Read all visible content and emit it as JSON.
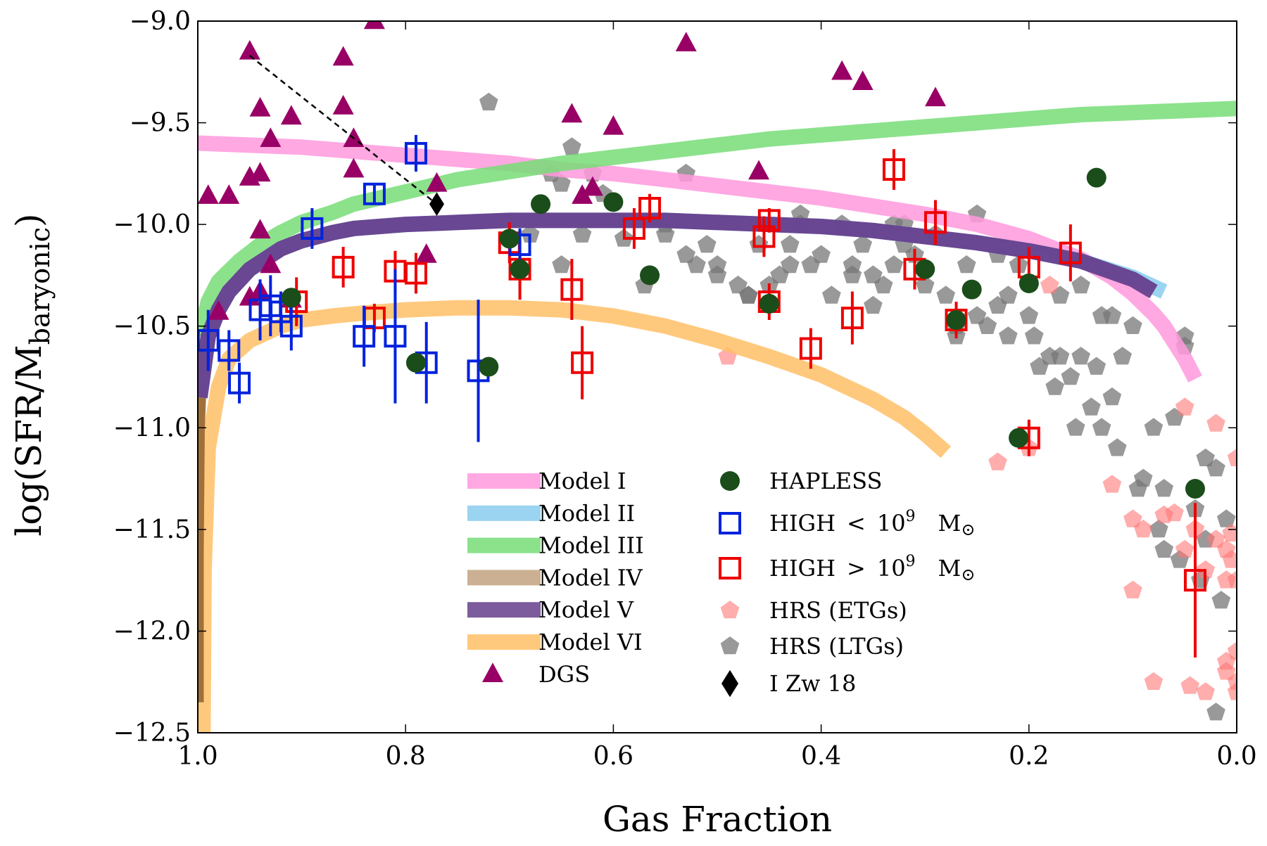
{
  "chart_data": {
    "type": "scatter",
    "title": "",
    "xlabel": "Gas Fraction",
    "ylabel": "log(SFR/M",
    "ylabel_sub": "baryonic",
    "ylabel_close": ")",
    "xlim": [
      1.0,
      0.0
    ],
    "ylim": [
      -12.5,
      -9.0
    ],
    "x_ticks": [
      1.0,
      0.8,
      0.6,
      0.4,
      0.2,
      0.0
    ],
    "x_tick_labels": [
      "1.0",
      "0.8",
      "0.6",
      "0.4",
      "0.2",
      "0.0"
    ],
    "y_ticks": [
      -9.0,
      -9.5,
      -10.0,
      -10.5,
      -11.0,
      -11.5,
      -12.0,
      -12.5
    ],
    "y_tick_labels": [
      "−9.0",
      "−9.5",
      "−10.0",
      "−10.5",
      "−11.0",
      "−11.5",
      "−12.0",
      "−12.5"
    ],
    "grid": false,
    "legend_position": "lower-center",
    "series": [
      {
        "name": "Model I",
        "kind": "line",
        "color": "#ff99dd",
        "x": [
          1.0,
          0.95,
          0.9,
          0.85,
          0.8,
          0.75,
          0.7,
          0.65,
          0.6,
          0.55,
          0.5,
          0.45,
          0.4,
          0.35,
          0.3,
          0.25,
          0.2,
          0.15,
          0.12,
          0.1,
          0.08,
          0.07,
          0.06,
          0.05,
          0.04
        ],
        "y": [
          -9.6,
          -9.61,
          -9.62,
          -9.64,
          -9.66,
          -9.68,
          -9.7,
          -9.73,
          -9.75,
          -9.78,
          -9.81,
          -9.84,
          -9.87,
          -9.91,
          -9.95,
          -10.0,
          -10.07,
          -10.17,
          -10.26,
          -10.34,
          -10.44,
          -10.5,
          -10.58,
          -10.66,
          -10.76
        ]
      },
      {
        "name": "Model II",
        "kind": "line",
        "color": "#88ccee",
        "x": [
          0.998,
          0.99,
          0.98,
          0.97,
          0.95,
          0.92,
          0.9,
          0.87,
          0.85,
          0.8,
          0.75,
          0.7,
          0.65,
          0.6,
          0.55,
          0.5,
          0.45,
          0.4,
          0.35,
          0.3,
          0.25,
          0.2,
          0.15,
          0.1,
          0.07
        ],
        "y": [
          -10.85,
          -10.55,
          -10.42,
          -10.33,
          -10.22,
          -10.12,
          -10.08,
          -10.04,
          -10.02,
          -10.0,
          -9.99,
          -9.98,
          -9.98,
          -9.98,
          -9.98,
          -9.99,
          -10.0,
          -10.01,
          -10.03,
          -10.06,
          -10.09,
          -10.13,
          -10.18,
          -10.26,
          -10.33
        ]
      },
      {
        "name": "Model III",
        "kind": "line",
        "color": "#77dd77",
        "x": [
          0.998,
          0.99,
          0.98,
          0.96,
          0.94,
          0.92,
          0.9,
          0.87,
          0.85,
          0.8,
          0.75,
          0.7,
          0.65,
          0.6,
          0.55,
          0.5,
          0.45,
          0.4,
          0.35,
          0.3,
          0.25,
          0.2,
          0.15,
          0.1,
          0.05,
          0.0
        ],
        "y": [
          -10.55,
          -10.38,
          -10.28,
          -10.18,
          -10.1,
          -10.04,
          -9.99,
          -9.94,
          -9.9,
          -9.84,
          -9.78,
          -9.74,
          -9.7,
          -9.67,
          -9.64,
          -9.61,
          -9.58,
          -9.56,
          -9.54,
          -9.52,
          -9.5,
          -9.48,
          -9.46,
          -9.45,
          -9.44,
          -9.43
        ]
      },
      {
        "name": "Model IV",
        "kind": "line",
        "color": "#a0703a",
        "x": [
          0.999,
          0.999,
          0.998,
          0.996,
          0.993
        ],
        "y": [
          -12.35,
          -11.6,
          -11.0,
          -10.75,
          -10.6
        ]
      },
      {
        "name": "Model V",
        "kind": "line",
        "color": "#663f8c",
        "x": [
          0.998,
          0.99,
          0.98,
          0.97,
          0.95,
          0.92,
          0.9,
          0.87,
          0.85,
          0.8,
          0.75,
          0.7,
          0.65,
          0.6,
          0.55,
          0.5,
          0.45,
          0.4,
          0.35,
          0.3,
          0.25,
          0.2,
          0.15,
          0.1,
          0.08
        ],
        "y": [
          -10.85,
          -10.55,
          -10.42,
          -10.33,
          -10.22,
          -10.12,
          -10.08,
          -10.04,
          -10.02,
          -10.0,
          -9.99,
          -9.98,
          -9.98,
          -9.98,
          -9.98,
          -9.99,
          -10.0,
          -10.01,
          -10.03,
          -10.06,
          -10.09,
          -10.13,
          -10.18,
          -10.27,
          -10.33
        ]
      },
      {
        "name": "Model VI",
        "kind": "line",
        "color": "#ffc066",
        "x": [
          0.995,
          0.994,
          0.99,
          0.98,
          0.97,
          0.95,
          0.92,
          0.9,
          0.87,
          0.85,
          0.8,
          0.75,
          0.7,
          0.65,
          0.6,
          0.55,
          0.5,
          0.45,
          0.4,
          0.35,
          0.32,
          0.3,
          0.28
        ],
        "y": [
          -12.5,
          -11.7,
          -11.1,
          -10.8,
          -10.66,
          -10.57,
          -10.5,
          -10.47,
          -10.45,
          -10.44,
          -10.42,
          -10.41,
          -10.41,
          -10.42,
          -10.45,
          -10.5,
          -10.57,
          -10.65,
          -10.74,
          -10.86,
          -10.95,
          -11.03,
          -11.12
        ]
      },
      {
        "name": "DGS",
        "kind": "marker",
        "marker": "triangle",
        "color": "#990066",
        "x": [
          0.99,
          0.97,
          0.95,
          0.94,
          0.94,
          0.93,
          0.91,
          0.95,
          0.94,
          0.93,
          0.91,
          0.86,
          0.86,
          0.85,
          0.85,
          0.83,
          0.78,
          0.77,
          0.64,
          0.63,
          0.62,
          0.6,
          0.53,
          0.46,
          0.38,
          0.36,
          0.29,
          0.94,
          0.95,
          0.98
        ],
        "y": [
          -9.86,
          -9.86,
          -9.15,
          -9.43,
          -10.03,
          -10.2,
          -9.47,
          -9.77,
          -9.75,
          -9.58,
          -10.37,
          -9.42,
          -9.18,
          -9.58,
          -9.73,
          -9.0,
          -10.15,
          -9.8,
          -9.46,
          -9.86,
          -9.82,
          -9.52,
          -9.11,
          -9.74,
          -9.25,
          -9.3,
          -9.38,
          -10.33,
          -10.36,
          -10.43
        ]
      },
      {
        "name": "HAPLESS",
        "kind": "marker",
        "marker": "circle",
        "color": "#1a4d1a",
        "x": [
          0.91,
          0.6,
          0.565,
          0.255,
          0.2,
          0.135,
          0.04,
          0.45,
          0.3,
          0.27,
          0.21,
          0.69,
          0.7,
          0.79,
          0.67,
          0.72
        ],
        "y": [
          -10.36,
          -9.89,
          -10.25,
          -10.32,
          -10.29,
          -9.77,
          -11.3,
          -10.39,
          -10.22,
          -10.47,
          -11.05,
          -10.22,
          -10.07,
          -10.68,
          -9.9,
          -10.7
        ]
      },
      {
        "name": "HIGH < 10^9 M⊙",
        "kind": "marker",
        "marker": "square",
        "color": "#0022dd",
        "x": [
          0.99,
          0.97,
          0.96,
          0.94,
          0.93,
          0.92,
          0.91,
          0.89,
          0.84,
          0.83,
          0.81,
          0.79,
          0.78,
          0.73,
          0.69
        ],
        "y": [
          -10.57,
          -10.62,
          -10.78,
          -10.42,
          -10.4,
          -10.43,
          -10.5,
          -10.02,
          -10.55,
          -9.85,
          -10.55,
          -9.65,
          -10.68,
          -10.72,
          -10.1
        ],
        "yerr": [
          0.15,
          0.1,
          0.1,
          0.15,
          0.15,
          0.1,
          0.12,
          0.1,
          0.15,
          0.05,
          0.33,
          0.09,
          0.2,
          0.35,
          0.08
        ]
      },
      {
        "name": "HIGH > 10^9 M⊙",
        "kind": "marker",
        "marker": "square",
        "color": "#ee0000",
        "x": [
          0.905,
          0.86,
          0.83,
          0.81,
          0.79,
          0.7,
          0.69,
          0.64,
          0.63,
          0.58,
          0.565,
          0.455,
          0.45,
          0.45,
          0.41,
          0.37,
          0.33,
          0.31,
          0.29,
          0.27,
          0.2,
          0.2,
          0.16,
          0.04
        ],
        "y": [
          -10.38,
          -10.21,
          -10.46,
          -10.23,
          -10.24,
          -10.09,
          -10.22,
          -10.32,
          -10.68,
          -10.02,
          -9.92,
          -10.06,
          -10.38,
          -9.98,
          -10.61,
          -10.46,
          -9.73,
          -10.22,
          -9.99,
          -10.47,
          -11.05,
          -10.21,
          -10.14,
          -11.75
        ],
        "yerr": [
          0.12,
          0.1,
          0.07,
          0.1,
          0.1,
          0.1,
          0.15,
          0.15,
          0.18,
          0.1,
          0.07,
          0.1,
          0.09,
          0.06,
          0.1,
          0.13,
          0.1,
          0.1,
          0.11,
          0.09,
          0.09,
          0.1,
          0.14,
          0.38
        ]
      },
      {
        "name": "HRS (ETGs)",
        "kind": "marker",
        "marker": "pentagon",
        "color": "#ff7777",
        "x": [
          0.49,
          0.23,
          0.2,
          0.18,
          0.12,
          0.1,
          0.09,
          0.07,
          0.06,
          0.05,
          0.04,
          0.03,
          0.02,
          0.01,
          0.01,
          0.005,
          0.005,
          0.0,
          0.0,
          0.0,
          0.01,
          0.03,
          0.045,
          0.02,
          0.0,
          0.08,
          0.1,
          0.05,
          0.01,
          0.0
        ],
        "y": [
          -10.65,
          -11.17,
          -11.1,
          -10.3,
          -11.28,
          -11.45,
          -11.5,
          -11.43,
          -11.42,
          -11.6,
          -11.5,
          -11.7,
          -11.55,
          -11.6,
          -11.75,
          -11.52,
          -11.65,
          -11.75,
          -12.1,
          -12.25,
          -12.15,
          -12.3,
          -12.27,
          -10.98,
          -11.15,
          -12.25,
          -11.8,
          -10.9,
          -12.2,
          -12.3
        ]
      },
      {
        "name": "HRS (LTGs)",
        "kind": "marker",
        "marker": "pentagon",
        "color": "#777777",
        "x": [
          0.72,
          0.68,
          0.66,
          0.65,
          0.64,
          0.62,
          0.61,
          0.59,
          0.57,
          0.55,
          0.53,
          0.52,
          0.51,
          0.5,
          0.48,
          0.47,
          0.46,
          0.44,
          0.43,
          0.42,
          0.41,
          0.4,
          0.39,
          0.38,
          0.37,
          0.36,
          0.35,
          0.34,
          0.33,
          0.32,
          0.31,
          0.3,
          0.29,
          0.28,
          0.27,
          0.26,
          0.25,
          0.24,
          0.23,
          0.22,
          0.21,
          0.2,
          0.19,
          0.18,
          0.17,
          0.16,
          0.15,
          0.14,
          0.13,
          0.12,
          0.11,
          0.1,
          0.09,
          0.08,
          0.07,
          0.06,
          0.05,
          0.04,
          0.03,
          0.02,
          0.01,
          0.135,
          0.115,
          0.095,
          0.075,
          0.055,
          0.035,
          0.015,
          0.195,
          0.175,
          0.155,
          0.5,
          0.45,
          0.35,
          0.25,
          0.15,
          0.05,
          0.65,
          0.55,
          0.42,
          0.32,
          0.22,
          0.12,
          0.02,
          0.47,
          0.37,
          0.27,
          0.17,
          0.07,
          0.63,
          0.53,
          0.43,
          0.33,
          0.23,
          0.13,
          0.03
        ],
        "y": [
          -9.4,
          -10.05,
          -9.75,
          -9.8,
          -9.62,
          -9.75,
          -9.85,
          -10.07,
          -10.3,
          -10.05,
          -10.15,
          -10.2,
          -10.1,
          -10.25,
          -10.3,
          -10.35,
          -10.1,
          -10.25,
          -10.1,
          -9.95,
          -10.2,
          -10.15,
          -10.35,
          -10.0,
          -10.25,
          -10.1,
          -10.4,
          -10.3,
          -10.2,
          -10.0,
          -10.15,
          -10.3,
          -10.05,
          -10.35,
          -10.55,
          -10.2,
          -10.45,
          -10.5,
          -10.4,
          -10.55,
          -10.2,
          -10.45,
          -10.7,
          -10.65,
          -10.35,
          -10.75,
          -10.65,
          -10.9,
          -11.0,
          -10.45,
          -10.65,
          -10.5,
          -11.25,
          -11.0,
          -11.3,
          -10.95,
          -10.6,
          -11.4,
          -11.55,
          -11.2,
          -11.45,
          -10.7,
          -11.1,
          -11.3,
          -11.5,
          -11.65,
          -11.75,
          -11.85,
          -10.55,
          -10.8,
          -11.0,
          -10.2,
          -10.3,
          -10.25,
          -9.95,
          -10.3,
          -10.55,
          -10.2,
          -10.0,
          -10.0,
          -10.1,
          -10.35,
          -10.85,
          -12.4,
          -10.35,
          -10.2,
          -10.5,
          -10.65,
          -11.6,
          -10.05,
          -9.75,
          -10.2,
          -10.0,
          -10.15,
          -10.45,
          -11.15
        ]
      },
      {
        "name": "I Zw 18",
        "kind": "marker",
        "marker": "diamond",
        "color": "#000000",
        "x": [
          0.77
        ],
        "y": [
          -9.9
        ]
      }
    ],
    "annotations": [
      {
        "kind": "dashed-line",
        "x": [
          0.95,
          0.77
        ],
        "y": [
          -9.17,
          -9.9
        ],
        "color": "#000000"
      }
    ],
    "legend": {
      "left": [
        "Model I",
        "Model II",
        "Model III",
        "Model IV",
        "Model V",
        "Model VI",
        "DGS"
      ],
      "right": [
        "HAPLESS",
        "HIGH_LT",
        "HIGH_GT",
        "HRS (ETGs)",
        "HRS (LTGs)",
        "I Zw 18"
      ],
      "labels": {
        "Model I": "Model I",
        "Model II": "Model II",
        "Model III": "Model III",
        "Model IV": "Model IV",
        "Model V": "Model V",
        "Model VI": "Model VI",
        "DGS": "DGS",
        "HAPLESS": "HAPLESS",
        "HIGH_LT_prefix": "HIGH",
        "HIGH_LT_op": "<",
        "HIGH_LT_base": "10",
        "HIGH_LT_exp": "9",
        "HIGH_LT_unit": "M",
        "HIGH_LT_sun": "⊙",
        "HIGH_GT_prefix": "HIGH",
        "HIGH_GT_op": ">",
        "HIGH_GT_base": "10",
        "HIGH_GT_exp": "9",
        "HIGH_GT_unit": "M",
        "HIGH_GT_sun": "⊙",
        "HRS (ETGs)": "HRS (ETGs)",
        "HRS (LTGs)": "HRS (LTGs)",
        "I Zw 18": "I Zw 18"
      }
    }
  }
}
